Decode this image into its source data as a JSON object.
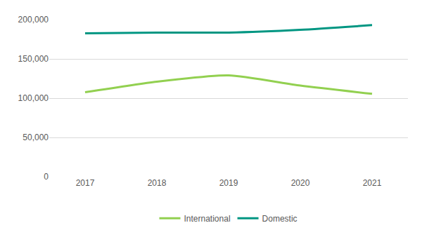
{
  "chart_data": {
    "type": "line",
    "categories": [
      "2017",
      "2018",
      "2019",
      "2020",
      "2021"
    ],
    "series": [
      {
        "name": "International",
        "color": "#92D050",
        "values": [
          107500,
          121000,
          129000,
          116000,
          105500
        ]
      },
      {
        "name": "Domestic",
        "color": "#009682",
        "values": [
          182500,
          183500,
          183500,
          187000,
          193000
        ]
      }
    ],
    "ylim": [
      0,
      200000
    ],
    "yticks": [
      0,
      {
        "value": 50000,
        "label": "50,000"
      },
      {
        "value": 100000,
        "label": "100,000"
      },
      {
        "value": 150000,
        "label": "150,000"
      },
      {
        "value": 200000,
        "label": "200,000"
      }
    ],
    "grid": true,
    "legend": "bottom",
    "line_style": "solid"
  }
}
